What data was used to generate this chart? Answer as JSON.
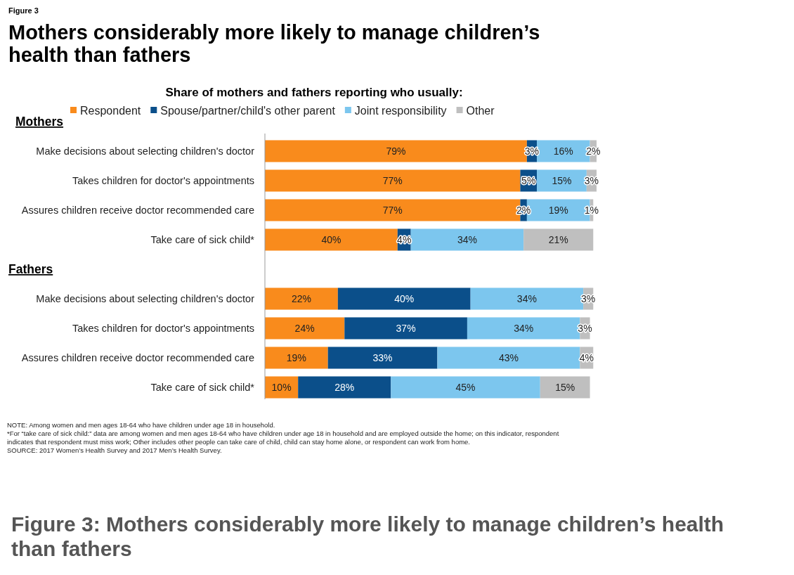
{
  "chart_data": {
    "type": "bar",
    "orientation": "horizontal",
    "stacked": true,
    "title": "Mothers considerably more likely to manage children’s health than fathers",
    "subtitle": "Share of mothers and fathers reporting who usually:",
    "categories": [
      "Make decisions about selecting children's doctor",
      "Takes children for doctor's appointments",
      "Assures children receive doctor recommended care",
      "Take care of sick child*",
      null,
      "Make decisions about selecting children's doctor",
      "Takes children for doctor's appointments",
      "Assures children receive doctor recommended care",
      "Take care of sick child*"
    ],
    "series": [
      {
        "name": "Respondent",
        "color": "#f98b1c",
        "values": [
          79,
          77,
          77,
          40,
          null,
          22,
          24,
          19,
          10
        ],
        "value_labels": [
          "79%",
          "77%",
          "77%",
          "40%",
          null,
          "22%",
          "24%",
          "19%",
          "10%"
        ]
      },
      {
        "name": "Spouse/partner/child's other parent",
        "color": "#0b4f8a",
        "values": [
          3,
          5,
          2,
          4,
          null,
          40,
          37,
          33,
          28
        ],
        "value_labels": [
          "3%",
          "5%",
          "2%",
          "4%",
          null,
          "40%",
          "37%",
          "33%",
          "28%"
        ]
      },
      {
        "name": "Joint responsibility",
        "color": "#7cc6ee",
        "values": [
          16,
          15,
          19,
          34,
          null,
          34,
          34,
          43,
          45
        ],
        "value_labels": [
          "16%",
          "15%",
          "19%",
          "34%",
          null,
          "34%",
          "34%",
          "43%",
          "45%"
        ]
      },
      {
        "name": "Other",
        "color": "#bfbfbf",
        "values": [
          2,
          3,
          1,
          21,
          null,
          3,
          3,
          4,
          15
        ],
        "value_labels": [
          "2%",
          "3%",
          "1%",
          "21%",
          null,
          "3%",
          "3%",
          "4%",
          "15%"
        ]
      }
    ],
    "tick_labels": "y",
    "legend": "top",
    "annotations": [
      "Mothers",
      "Fathers",
      "Figure 3",
      "NOTE: Among women and men ages 18-64 who have children under age 18 in household.",
      "*For “take care of sick child:” data are among women and men ages 18-64 who have children under age 18 in household and are employed outside the home; on this indicator, respondent indicates that respondent must miss work; Other includes other people can take care of child, child can stay home alone, or respondent can work from home.",
      "SOURCE: 2017 Women’s Health Survey and 2017 Men’s Health Survey.",
      "Figure 3: Mothers considerably more likely to manage children’s health than fathers"
    ]
  }
}
